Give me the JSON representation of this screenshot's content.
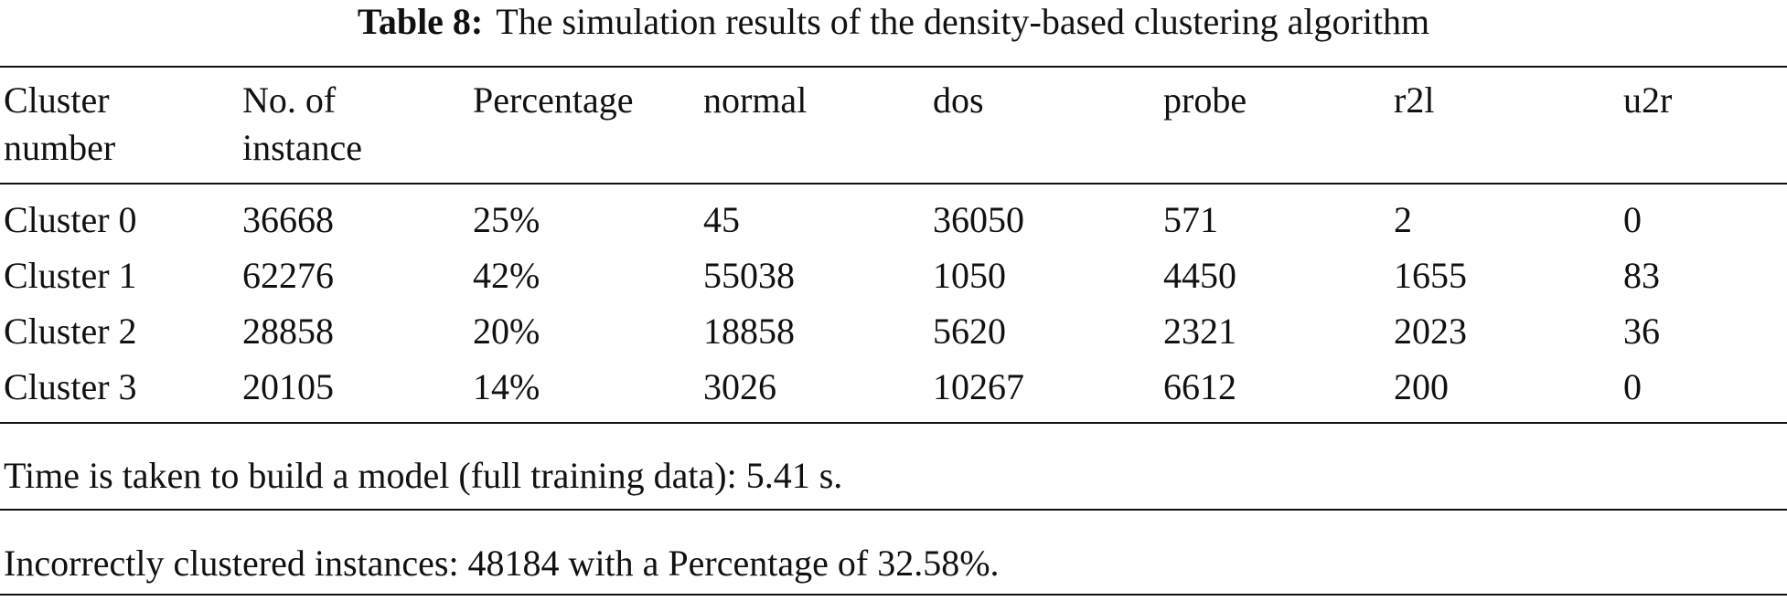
{
  "table": {
    "caption_label": "Table 8:",
    "caption_text": "The simulation results of the density-based clustering algorithm",
    "columns": [
      [
        "Cluster",
        "number"
      ],
      [
        "No. of",
        "instance"
      ],
      [
        "Percentage",
        ""
      ],
      [
        "normal",
        ""
      ],
      [
        "dos",
        ""
      ],
      [
        "probe",
        ""
      ],
      [
        "r2l",
        ""
      ],
      [
        "u2r",
        ""
      ]
    ],
    "rows": [
      [
        "Cluster 0",
        "36668",
        "25%",
        "45",
        "36050",
        "571",
        "2",
        "0"
      ],
      [
        "Cluster 1",
        "62276",
        "42%",
        "55038",
        "1050",
        "4450",
        "1655",
        "83"
      ],
      [
        "Cluster 2",
        "28858",
        "20%",
        "18858",
        "5620",
        "2321",
        "2023",
        "36"
      ],
      [
        "Cluster 3",
        "20105",
        "14%",
        "3026",
        "10267",
        "6612",
        "200",
        "0"
      ]
    ],
    "notes": [
      "Time is taken to build a model (full training data): 5.41 s.",
      "Incorrectly clustered instances: 48184 with a Percentage of 32.58%."
    ]
  }
}
